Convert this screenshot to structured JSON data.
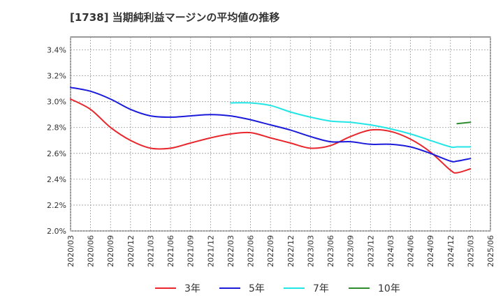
{
  "chart_data": {
    "type": "line",
    "title": "[1738]  当期純利益マージンの平均値の推移",
    "xlabel": "",
    "ylabel": "",
    "ylim": [
      0.02,
      0.035
    ],
    "y_ticks": [
      "2.0%",
      "2.2%",
      "2.4%",
      "2.6%",
      "2.8%",
      "3.0%",
      "3.2%",
      "3.4%"
    ],
    "y_tick_values": [
      0.02,
      0.022,
      0.024,
      0.026,
      0.028,
      0.03,
      0.032,
      0.034
    ],
    "x_ticks": [
      "2020/03",
      "2020/06",
      "2020/09",
      "2020/12",
      "2021/03",
      "2021/06",
      "2021/09",
      "2021/12",
      "2022/03",
      "2022/06",
      "2022/09",
      "2022/12",
      "2023/03",
      "2023/06",
      "2023/09",
      "2023/12",
      "2024/03",
      "2024/06",
      "2024/09",
      "2024/12",
      "2025/03",
      "2025/06"
    ],
    "grid": true,
    "legend_position": "bottom",
    "series": [
      {
        "name": "3年",
        "color": "#e8262b",
        "x": [
          "2020/03",
          "2020/06",
          "2020/09",
          "2020/12",
          "2021/03",
          "2021/06",
          "2021/09",
          "2021/12",
          "2022/03",
          "2022/06",
          "2022/09",
          "2022/12",
          "2023/03",
          "2023/06",
          "2023/09",
          "2023/12",
          "2024/03",
          "2024/06",
          "2024/09",
          "2024/12",
          "2025/01",
          "2025/03"
        ],
        "values": [
          0.0302,
          0.0294,
          0.028,
          0.027,
          0.0264,
          0.0264,
          0.0268,
          0.0272,
          0.0275,
          0.0276,
          0.0272,
          0.0268,
          0.0264,
          0.0266,
          0.0273,
          0.0278,
          0.0277,
          0.0271,
          0.0261,
          0.0247,
          0.0245,
          0.0248
        ]
      },
      {
        "name": "5年",
        "color": "#1a1adb",
        "x": [
          "2020/03",
          "2020/06",
          "2020/09",
          "2020/12",
          "2021/03",
          "2021/06",
          "2021/09",
          "2021/12",
          "2022/03",
          "2022/06",
          "2022/09",
          "2022/12",
          "2023/03",
          "2023/06",
          "2023/09",
          "2023/12",
          "2024/03",
          "2024/06",
          "2024/09",
          "2024/12",
          "2025/01",
          "2025/03"
        ],
        "values": [
          0.0311,
          0.0308,
          0.0302,
          0.0294,
          0.0289,
          0.0288,
          0.0289,
          0.029,
          0.0289,
          0.0286,
          0.0282,
          0.0278,
          0.0273,
          0.0269,
          0.0269,
          0.0267,
          0.0267,
          0.0265,
          0.026,
          0.0254,
          0.0254,
          0.0256
        ]
      },
      {
        "name": "7年",
        "color": "#22e5e5",
        "x": [
          "2022/03",
          "2022/06",
          "2022/09",
          "2022/12",
          "2023/03",
          "2023/06",
          "2023/09",
          "2023/12",
          "2024/03",
          "2024/06",
          "2024/09",
          "2024/12",
          "2025/01",
          "2025/03"
        ],
        "values": [
          0.0299,
          0.0299,
          0.0297,
          0.0292,
          0.0288,
          0.0285,
          0.0284,
          0.0282,
          0.0279,
          0.0275,
          0.027,
          0.0265,
          0.0265,
          0.0265
        ]
      },
      {
        "name": "10年",
        "color": "#2e8b2e",
        "x": [
          "2025/01",
          "2025/03"
        ],
        "values": [
          0.0283,
          0.0284
        ]
      }
    ]
  }
}
